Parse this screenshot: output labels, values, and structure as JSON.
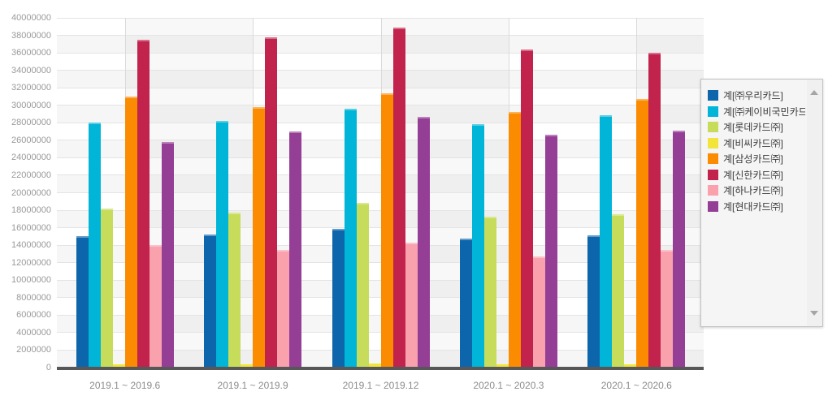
{
  "chart_data": {
    "type": "bar",
    "title": "",
    "xlabel": "",
    "ylabel": "",
    "categories": [
      "2019.1 ~ 2019.6",
      "2019.1 ~ 2019.9",
      "2019.1 ~ 2019.12",
      "2020.1 ~ 2020.3",
      "2020.1 ~ 2020.6"
    ],
    "series": [
      {
        "name": "계[㈜우리카드]",
        "color": "#0d65ab",
        "values": [
          15000000,
          15200000,
          15900000,
          14800000,
          15100000
        ]
      },
      {
        "name": "계[㈜케이비국민카드]",
        "color": "#00b5d8",
        "values": [
          28000000,
          28200000,
          29600000,
          27800000,
          28900000
        ]
      },
      {
        "name": "계[롯데카드㈜]",
        "color": "#c6dc5a",
        "values": [
          18200000,
          17700000,
          18800000,
          17300000,
          17500000
        ]
      },
      {
        "name": "계[비씨카드㈜]",
        "color": "#f2e438",
        "values": [
          400000,
          400000,
          450000,
          400000,
          400000
        ]
      },
      {
        "name": "계[삼성카드㈜]",
        "color": "#fb8b00",
        "values": [
          31000000,
          29800000,
          31400000,
          29200000,
          30700000
        ]
      },
      {
        "name": "계[신한카드㈜]",
        "color": "#c2234c",
        "values": [
          37500000,
          37800000,
          38900000,
          36400000,
          36000000
        ]
      },
      {
        "name": "계[하나카드㈜]",
        "color": "#f9a1ad",
        "values": [
          14000000,
          13500000,
          14300000,
          12700000,
          13500000
        ]
      },
      {
        "name": "계[현대카드㈜]",
        "color": "#953e96",
        "values": [
          25800000,
          27000000,
          28700000,
          26600000,
          27100000
        ]
      }
    ],
    "ylim": [
      0,
      40000000
    ],
    "ytick_step": 2000000,
    "grid": true,
    "legend_position": "right",
    "axis_line_color": "#57575a"
  },
  "legend": {
    "scroll_up_icon": "triangle-up",
    "scroll_down_icon": "triangle-down"
  }
}
